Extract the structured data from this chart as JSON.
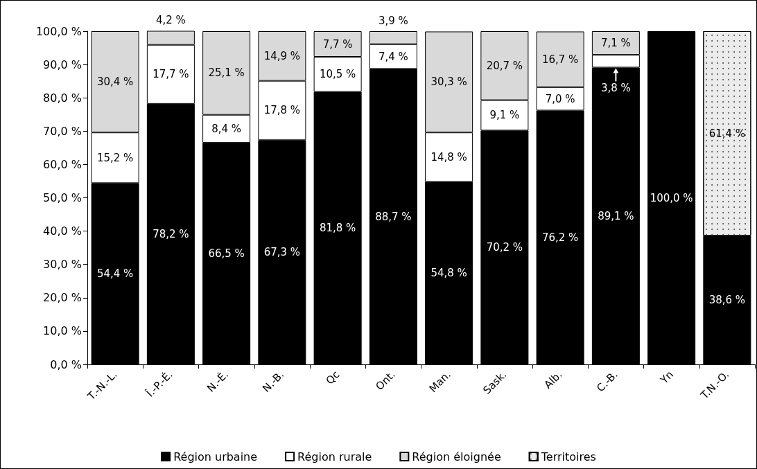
{
  "chart_data": {
    "type": "bar",
    "stacked": true,
    "legend": "bottom",
    "grid": false,
    "categories": [
      "T.-N.-L.",
      "Î.-P.-É.",
      "N.-É.",
      "N.-B.",
      "Qc",
      "Ont.",
      "Man.",
      "Sask.",
      "Alb.",
      "C.-B.",
      "Yn",
      "T.N.-O."
    ],
    "ylim": [
      0,
      100
    ],
    "yticks": [
      {
        "value": 0,
        "label": "0,0 %"
      },
      {
        "value": 10,
        "label": "10,0 %"
      },
      {
        "value": 20,
        "label": "20,0 %"
      },
      {
        "value": 30,
        "label": "30,0 %"
      },
      {
        "value": 40,
        "label": "40,0 %"
      },
      {
        "value": 50,
        "label": "50,0 %"
      },
      {
        "value": 60,
        "label": "60,0 %"
      },
      {
        "value": 70,
        "label": "70,0 %"
      },
      {
        "value": 80,
        "label": "80,0 %"
      },
      {
        "value": 90,
        "label": "90,0 %"
      },
      {
        "value": 100,
        "label": "100,0 %"
      }
    ],
    "series": [
      {
        "name": "Région urbaine",
        "color": "#000000",
        "values": [
          54.4,
          78.2,
          66.5,
          67.3,
          81.8,
          88.7,
          54.8,
          70.2,
          76.2,
          89.1,
          100.0,
          38.6
        ],
        "value_labels": [
          "54,4 %",
          "78,2 %",
          "66,5 %",
          "67,3 %",
          "81,8 %",
          "88,7 %",
          "54,8 %",
          "70,2 %",
          "76,2 %",
          "89,1 %",
          "100,0 %",
          "38,6 %"
        ]
      },
      {
        "name": "Région rurale",
        "color": "#ffffff",
        "values": [
          15.2,
          17.7,
          8.4,
          17.8,
          10.5,
          7.4,
          14.8,
          9.1,
          7.0,
          3.8,
          null,
          null
        ],
        "value_labels": [
          "15,2 %",
          "17,7 %",
          "8,4 %",
          "17,8 %",
          "10,5 %",
          "7,4 %",
          "14,8 %",
          "9,1 %",
          "7,0 %",
          "3,8 %",
          null,
          null
        ]
      },
      {
        "name": "Région éloignée",
        "color": "#d9d9d9",
        "values": [
          30.4,
          4.2,
          25.1,
          14.9,
          7.7,
          3.9,
          30.3,
          20.7,
          16.7,
          7.1,
          null,
          null
        ],
        "value_labels": [
          "30,4 %",
          "4,2 %",
          "25,1 %",
          "14,9 %",
          "7,7 %",
          "3,9 %",
          "30,3 %",
          "20,7 %",
          "16,7 %",
          "7,1 %",
          null,
          null
        ]
      },
      {
        "name": "Territoires",
        "color": "#ececec",
        "values": [
          null,
          null,
          null,
          null,
          null,
          null,
          null,
          null,
          null,
          null,
          null,
          61.4
        ],
        "value_labels": [
          null,
          null,
          null,
          null,
          null,
          null,
          null,
          null,
          null,
          null,
          null,
          "61,4 %"
        ]
      }
    ]
  }
}
